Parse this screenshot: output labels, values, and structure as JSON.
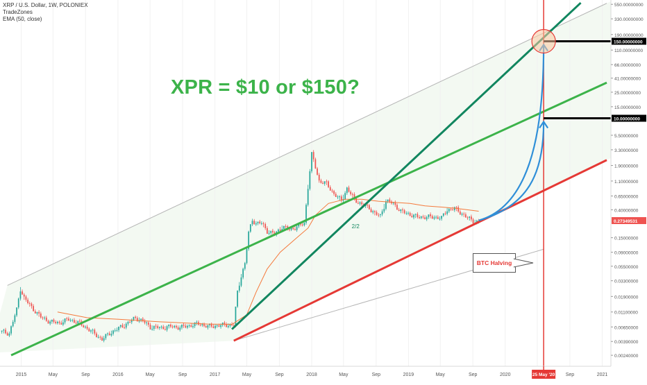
{
  "legend": {
    "symbol": "XRP / U.S. Dollar, 1W, POLONIEX",
    "indicator1": "TradeZones",
    "indicator2": "EMA (50, close)"
  },
  "headline": "XPR = $10 or $150?",
  "annotations": {
    "btc_halving": "BTC Halving",
    "halving_date": "25 May '20",
    "mark_label": "2/2"
  },
  "price_tags": {
    "target_high": "150.00000000",
    "target_low": "10.00000000",
    "current": "0.27349531"
  },
  "colors": {
    "candle_up": "#26a69a",
    "candle_down": "#ef5350",
    "ema": "#f5793b",
    "trend_green": "#3cb34a",
    "trend_teal": "#11865f",
    "support_red": "#e53935",
    "channel_fill": "#f3f9f2",
    "arrow_blue": "#2f8fd8"
  },
  "chart_data": {
    "type": "candlestick",
    "scale": "log",
    "x_axis": {
      "tick_labels": [
        "2015",
        "May",
        "Sep",
        "2016",
        "May",
        "Sep",
        "2017",
        "May",
        "Sep",
        "2018",
        "May",
        "Sep",
        "2019",
        "May",
        "Sep",
        "2020",
        "May",
        "Sep",
        "2021"
      ],
      "tick_dates": [
        "2015-01-01",
        "2015-05-01",
        "2015-09-01",
        "2016-01-01",
        "2016-05-01",
        "2016-09-01",
        "2017-01-01",
        "2017-05-01",
        "2017-09-01",
        "2018-01-01",
        "2018-05-01",
        "2018-09-01",
        "2019-01-01",
        "2019-05-01",
        "2019-09-01",
        "2020-01-01",
        "2020-05-01",
        "2020-09-01",
        "2021-01-01"
      ],
      "range": [
        "2014-10-13",
        "2021-01-18"
      ]
    },
    "y_axis": {
      "tick_labels": [
        "550.00000000",
        "330.00000000",
        "190.00000000",
        "110.00000000",
        "66.00000000",
        "41.00000000",
        "25.00000000",
        "15.00000000",
        "5.50000000",
        "3.30000000",
        "1.90000000",
        "1.10000000",
        "0.65000000",
        "0.40000000",
        "0.15000000",
        "0.09000000",
        "0.05500000",
        "0.03300000",
        "0.01900000",
        "0.01100000",
        "0.00650000",
        "0.00390000",
        "0.00240000"
      ],
      "range": [
        0.00163,
        640
      ]
    },
    "price_path": [
      [
        "2014-10-20",
        0.0055
      ],
      [
        "2014-11-17",
        0.0052
      ],
      [
        "2014-12-15",
        0.012
      ],
      [
        "2014-12-29",
        0.025
      ],
      [
        "2015-01-12",
        0.018
      ],
      [
        "2015-02-09",
        0.013
      ],
      [
        "2015-03-16",
        0.0092
      ],
      [
        "2015-04-20",
        0.0078
      ],
      [
        "2015-05-25",
        0.0075
      ],
      [
        "2015-06-29",
        0.0085
      ],
      [
        "2015-08-03",
        0.0076
      ],
      [
        "2015-09-07",
        0.0062
      ],
      [
        "2015-10-05",
        0.0051
      ],
      [
        "2015-11-02",
        0.0042
      ],
      [
        "2015-11-30",
        0.0052
      ],
      [
        "2015-12-28",
        0.006
      ],
      [
        "2016-02-01",
        0.0072
      ],
      [
        "2016-03-07",
        0.009
      ],
      [
        "2016-04-04",
        0.008
      ],
      [
        "2016-05-02",
        0.0065
      ],
      [
        "2016-06-13",
        0.0063
      ],
      [
        "2016-07-18",
        0.0066
      ],
      [
        "2016-08-22",
        0.0064
      ],
      [
        "2016-09-26",
        0.0068
      ],
      [
        "2016-10-31",
        0.0073
      ],
      [
        "2016-12-05",
        0.0066
      ],
      [
        "2017-01-09",
        0.0068
      ],
      [
        "2017-02-13",
        0.007
      ],
      [
        "2017-03-13",
        0.007
      ],
      [
        "2017-03-27",
        0.022
      ],
      [
        "2017-04-10",
        0.04
      ],
      [
        "2017-04-24",
        0.06
      ],
      [
        "2017-05-08",
        0.18
      ],
      [
        "2017-05-22",
        0.28
      ],
      [
        "2017-06-05",
        0.25
      ],
      [
        "2017-06-26",
        0.25
      ],
      [
        "2017-07-17",
        0.19
      ],
      [
        "2017-08-14",
        0.17
      ],
      [
        "2017-09-11",
        0.22
      ],
      [
        "2017-10-09",
        0.2
      ],
      [
        "2017-11-06",
        0.22
      ],
      [
        "2017-12-04",
        0.25
      ],
      [
        "2017-12-18",
        0.9
      ],
      [
        "2018-01-01",
        2.8
      ],
      [
        "2018-01-15",
        1.8
      ],
      [
        "2018-01-29",
        1.1
      ],
      [
        "2018-02-26",
        1.0
      ],
      [
        "2018-03-26",
        0.7
      ],
      [
        "2018-04-23",
        0.55
      ],
      [
        "2018-05-14",
        0.85
      ],
      [
        "2018-06-11",
        0.58
      ],
      [
        "2018-07-09",
        0.48
      ],
      [
        "2018-08-06",
        0.43
      ],
      [
        "2018-08-27",
        0.35
      ],
      [
        "2018-09-17",
        0.32
      ],
      [
        "2018-10-08",
        0.55
      ],
      [
        "2018-11-05",
        0.5
      ],
      [
        "2018-12-03",
        0.38
      ],
      [
        "2019-01-07",
        0.34
      ],
      [
        "2019-02-04",
        0.31
      ],
      [
        "2019-03-11",
        0.31
      ],
      [
        "2019-04-08",
        0.31
      ],
      [
        "2019-05-06",
        0.3
      ],
      [
        "2019-05-27",
        0.4
      ],
      [
        "2019-06-24",
        0.42
      ],
      [
        "2019-07-22",
        0.35
      ],
      [
        "2019-08-12",
        0.3
      ],
      [
        "2019-09-02",
        0.27
      ],
      [
        "2019-09-23",
        0.26
      ]
    ],
    "ema_path": [
      [
        "2015-05-18",
        0.011
      ],
      [
        "2015-09-07",
        0.009
      ],
      [
        "2016-01-04",
        0.0085
      ],
      [
        "2016-06-06",
        0.0078
      ],
      [
        "2016-12-05",
        0.0072
      ],
      [
        "2017-03-06",
        0.0071
      ],
      [
        "2017-05-01",
        0.01
      ],
      [
        "2017-06-05",
        0.022
      ],
      [
        "2017-07-17",
        0.05
      ],
      [
        "2017-09-04",
        0.09
      ],
      [
        "2017-11-06",
        0.15
      ],
      [
        "2017-12-18",
        0.21
      ],
      [
        "2018-01-15",
        0.33
      ],
      [
        "2018-03-05",
        0.5
      ],
      [
        "2018-05-07",
        0.58
      ],
      [
        "2018-07-09",
        0.58
      ],
      [
        "2018-09-10",
        0.54
      ],
      [
        "2018-11-05",
        0.52
      ],
      [
        "2019-01-07",
        0.5
      ],
      [
        "2019-03-04",
        0.46
      ],
      [
        "2019-05-06",
        0.44
      ],
      [
        "2019-07-01",
        0.42
      ],
      [
        "2019-09-23",
        0.38
      ]
    ],
    "lines": [
      {
        "name": "channel-upper",
        "from": [
          "2014-11-10",
          0.028
        ],
        "to": [
          "2021-01-18",
          570
        ]
      },
      {
        "name": "channel-lower",
        "from": [
          "2017-03-13",
          0.004
        ],
        "to": [
          "2020-05-25",
          0.1
        ]
      },
      {
        "name": "green-trendline",
        "from": [
          "2014-11-24",
          0.0024
        ],
        "to": [
          "2021-01-18",
          35
        ]
      },
      {
        "name": "teal-trendline",
        "from": [
          "2017-03-06",
          0.006
        ],
        "to": [
          "2020-10-12",
          580
        ]
      },
      {
        "name": "red-support",
        "from": [
          "2017-03-13",
          0.004
        ],
        "to": [
          "2021-01-18",
          2.3
        ]
      }
    ],
    "projections": [
      {
        "from": [
          "2019-09-23",
          0.275
        ],
        "to": [
          "2020-05-25",
          150
        ]
      },
      {
        "from": [
          "2019-09-23",
          0.275
        ],
        "to": [
          "2020-05-25",
          10
        ]
      }
    ],
    "vertical_marker": "2020-05-25",
    "levels": [
      150,
      10,
      0.27349531
    ],
    "circle_target": [
      "2020-05-25",
      150
    ]
  }
}
